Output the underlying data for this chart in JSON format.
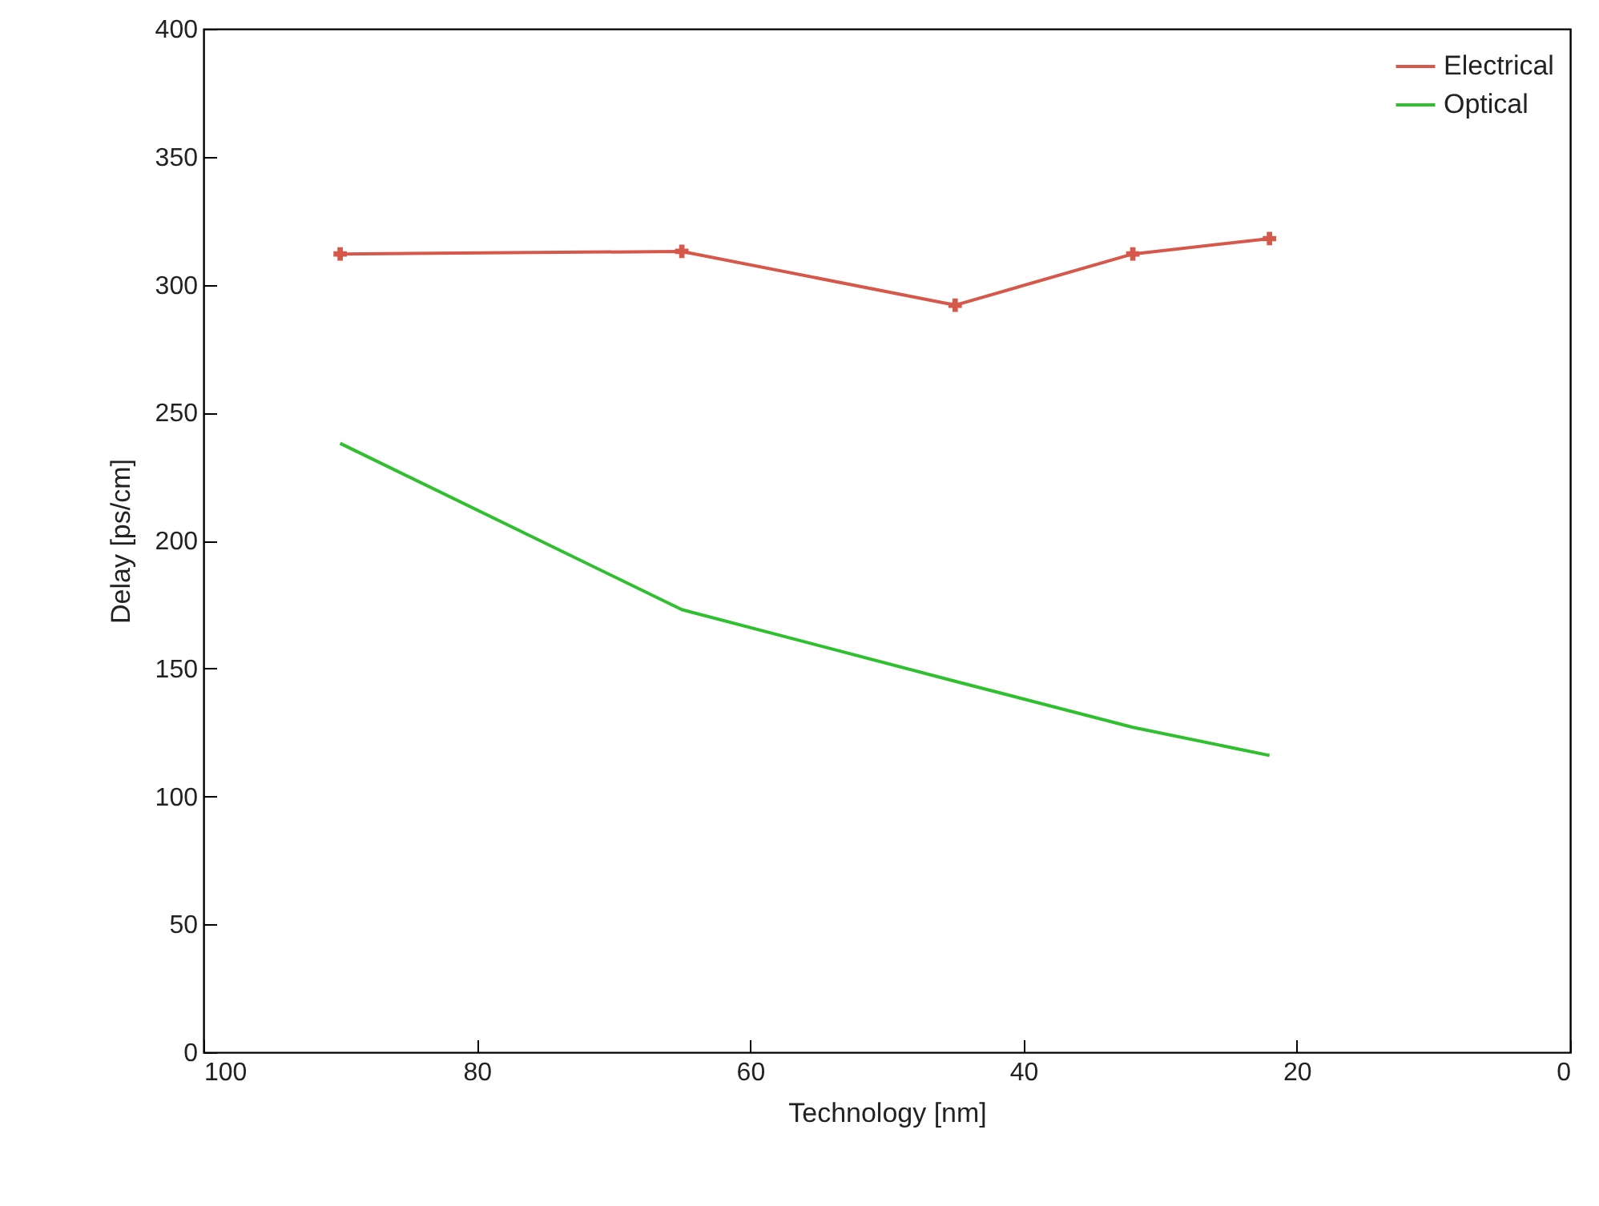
{
  "chart_data": {
    "type": "line",
    "xlabel": "Technology [nm]",
    "ylabel": "Delay [ps/cm]",
    "xlim": [
      100,
      0
    ],
    "xticks": [
      100,
      80,
      60,
      40,
      20,
      0
    ],
    "ylim": [
      0,
      400
    ],
    "yticks": [
      0,
      50,
      100,
      150,
      200,
      250,
      300,
      350,
      400
    ],
    "grid": false,
    "legend": "top right",
    "series": [
      {
        "name": "Electrical",
        "color": "#d6584a",
        "marker": "cross",
        "x": [
          90,
          65,
          45,
          32,
          22
        ],
        "values": [
          312,
          313,
          292,
          312,
          318
        ]
      },
      {
        "name": "Optical",
        "color": "#2fbf2f",
        "marker": "none",
        "x": [
          90,
          65,
          45,
          32,
          22
        ],
        "values": [
          238,
          173,
          145,
          127,
          116
        ]
      }
    ]
  }
}
